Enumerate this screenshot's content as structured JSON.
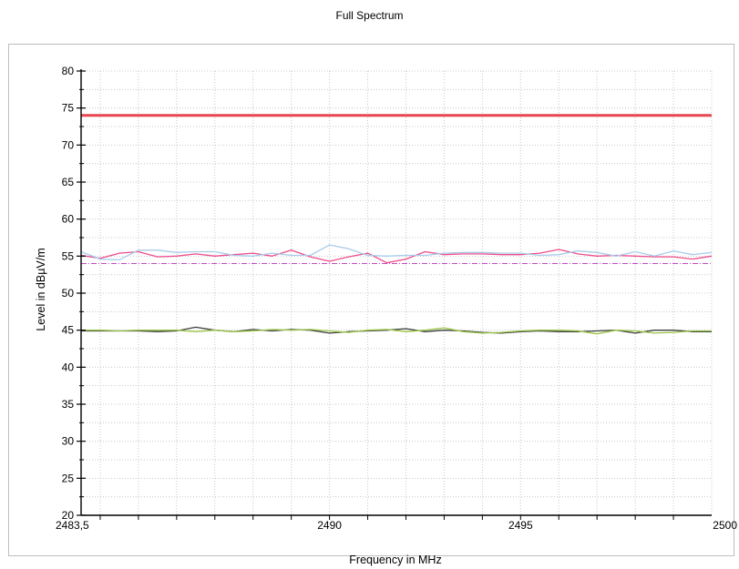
{
  "chart_data": {
    "type": "line",
    "title": "Full Spectrum",
    "xlabel": "Frequency in MHz",
    "ylabel": "Level in dBµV/m",
    "xlim": [
      2483.5,
      2500
    ],
    "ylim": [
      20,
      80
    ],
    "x_tick_labels": [
      "2483,5",
      "2490",
      "2495",
      "2500"
    ],
    "x_ticks": [
      2483.5,
      2490,
      2495,
      2500
    ],
    "y_ticks": [
      20,
      25,
      30,
      35,
      40,
      45,
      50,
      55,
      60,
      65,
      70,
      75,
      80
    ],
    "grid": true,
    "limit_lines": [
      {
        "value": 74,
        "color": "#e8474f",
        "style": "solid"
      },
      {
        "value": 54,
        "color": "#c04bc4",
        "style": "dashdot"
      }
    ],
    "series": [
      {
        "color": "#ed4d8c",
        "x": [
          2483.5,
          2484,
          2484.5,
          2485,
          2485.5,
          2486,
          2486.5,
          2487,
          2487.5,
          2488,
          2488.5,
          2489,
          2489.5,
          2490,
          2490.5,
          2491,
          2491.5,
          2492,
          2492.5,
          2493,
          2493.5,
          2494,
          2494.5,
          2495,
          2495.5,
          2496,
          2496.5,
          2497,
          2497.5,
          2498,
          2498.5,
          2499,
          2499.5,
          2500
        ],
        "values": [
          55.1,
          54.7,
          55.4,
          55.6,
          54.9,
          55.0,
          55.3,
          55.0,
          55.2,
          55.4,
          55.0,
          55.8,
          54.9,
          54.3,
          54.9,
          55.4,
          54.1,
          54.6,
          55.6,
          55.2,
          55.3,
          55.3,
          55.2,
          55.2,
          55.4,
          55.9,
          55.3,
          55.0,
          55.1,
          55.0,
          54.9,
          54.9,
          54.6,
          55.0
        ]
      },
      {
        "color": "#a8cdea",
        "x": [
          2483.5,
          2484,
          2484.5,
          2485,
          2485.5,
          2486,
          2486.5,
          2487,
          2487.5,
          2488,
          2488.5,
          2489,
          2489.5,
          2490,
          2490.5,
          2491,
          2491.5,
          2492,
          2492.5,
          2493,
          2493.5,
          2494,
          2494.5,
          2495,
          2495.5,
          2496,
          2496.5,
          2497,
          2497.5,
          2498,
          2498.5,
          2499,
          2499.5,
          2500
        ],
        "values": [
          55.6,
          54.6,
          54.5,
          55.8,
          55.8,
          55.5,
          55.6,
          55.6,
          55.1,
          55.0,
          55.4,
          55.1,
          55.1,
          56.5,
          56.0,
          55.1,
          55.0,
          55.1,
          55.1,
          55.4,
          55.5,
          55.5,
          55.4,
          55.4,
          55.1,
          55.2,
          55.7,
          55.5,
          55.0,
          55.6,
          55.0,
          55.7,
          55.2,
          55.5
        ]
      },
      {
        "color": "#3b3f3a",
        "x": [
          2483.5,
          2484,
          2484.5,
          2485,
          2485.5,
          2486,
          2486.5,
          2487,
          2487.5,
          2488,
          2488.5,
          2489,
          2489.5,
          2490,
          2490.5,
          2491,
          2491.5,
          2492,
          2492.5,
          2493,
          2493.5,
          2494,
          2494.5,
          2495,
          2495.5,
          2496,
          2496.5,
          2497,
          2497.5,
          2498,
          2498.5,
          2499,
          2499.5,
          2500
        ],
        "values": [
          44.9,
          44.9,
          44.9,
          44.9,
          44.8,
          44.9,
          45.4,
          45.0,
          44.8,
          45.1,
          44.9,
          45.1,
          45.0,
          44.6,
          44.8,
          44.9,
          45.0,
          45.2,
          44.8,
          45.0,
          44.9,
          44.7,
          44.6,
          44.8,
          44.9,
          44.8,
          44.8,
          44.9,
          45.0,
          44.6,
          45.0,
          45.0,
          44.8,
          44.8
        ]
      },
      {
        "color": "#9bc547",
        "x": [
          2483.5,
          2484,
          2484.5,
          2485,
          2485.5,
          2486,
          2486.5,
          2487,
          2487.5,
          2488,
          2488.5,
          2489,
          2489.5,
          2490,
          2490.5,
          2491,
          2491.5,
          2492,
          2492.5,
          2493,
          2493.5,
          2494,
          2494.5,
          2495,
          2495.5,
          2496,
          2496.5,
          2497,
          2497.5,
          2498,
          2498.5,
          2499,
          2499.5,
          2500
        ],
        "values": [
          45.0,
          45.0,
          44.9,
          45.0,
          45.0,
          45.0,
          44.8,
          45.0,
          44.8,
          44.9,
          45.1,
          45.0,
          45.1,
          44.9,
          44.7,
          45.0,
          45.1,
          44.8,
          45.0,
          45.3,
          44.8,
          44.6,
          44.7,
          44.9,
          45.0,
          45.0,
          44.9,
          44.5,
          45.0,
          44.9,
          44.6,
          44.7,
          44.9,
          44.9
        ]
      }
    ]
  }
}
